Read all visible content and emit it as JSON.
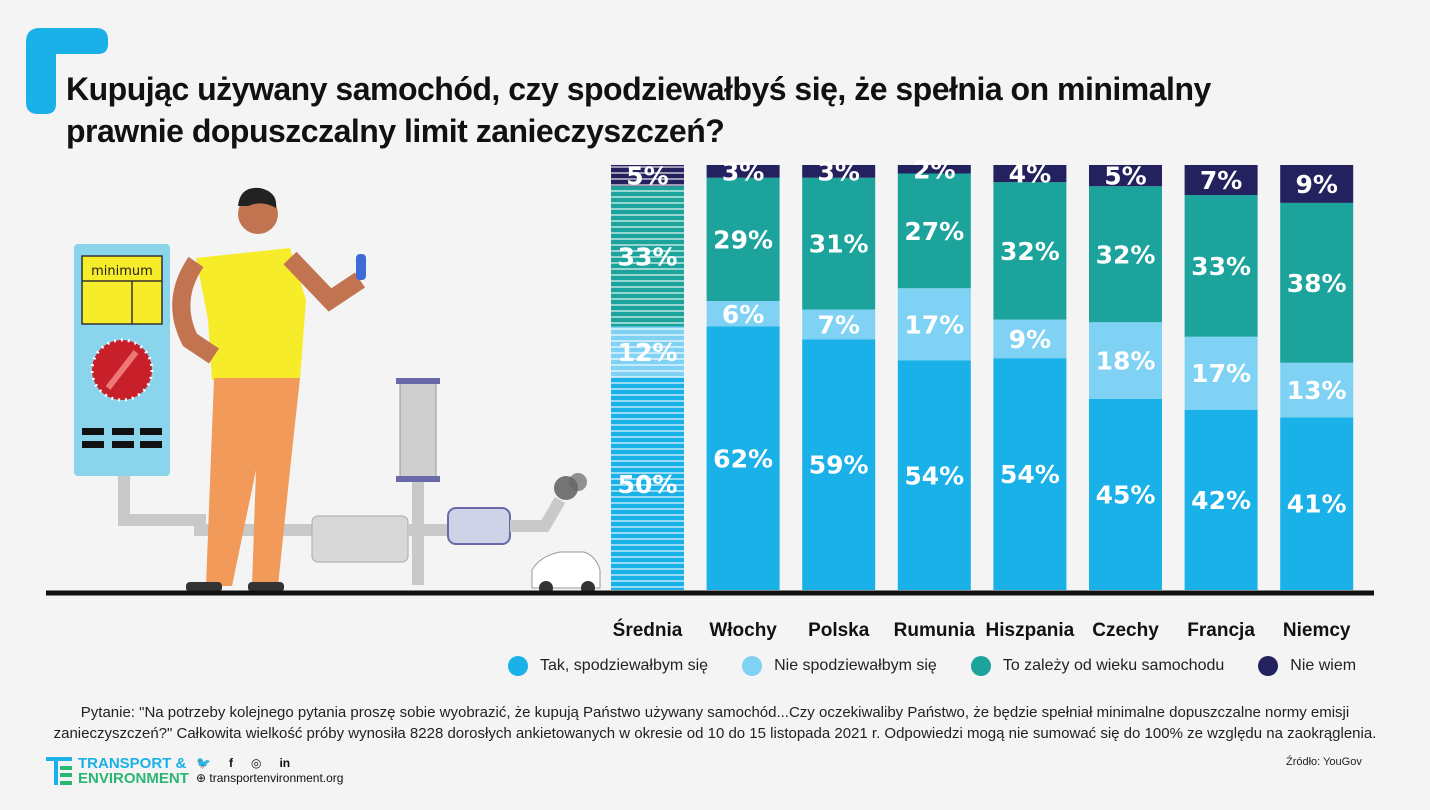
{
  "title": "Kupując używany samochód, czy spodziewałbyś się, że spełnia on minimalny prawnie dopuszczalny limit zanieczyszczeń?",
  "illustration": {
    "panel_label": "minimum"
  },
  "colors": {
    "tak": "#1ab0e8",
    "nie": "#80d2f4",
    "zalezy": "#1ba39c",
    "nie_wiem": "#23215e",
    "background": "#f4f4f4"
  },
  "chart_data": {
    "type": "bar",
    "stacked": true,
    "categories": [
      "Średnia",
      "Włochy",
      "Polska",
      "Rumunia",
      "Hiszpania",
      "Czechy",
      "Francja",
      "Niemcy"
    ],
    "series": [
      {
        "name": "Tak, spodziewałbym się",
        "values": [
          50,
          62,
          59,
          54,
          54,
          45,
          42,
          41
        ]
      },
      {
        "name": "Nie spodziewałbym się",
        "values": [
          12,
          6,
          7,
          17,
          9,
          18,
          17,
          13
        ]
      },
      {
        "name": "To zależy od wieku samochodu",
        "values": [
          33,
          29,
          31,
          27,
          32,
          32,
          33,
          38
        ]
      },
      {
        "name": "Nie wiem",
        "values": [
          5,
          3,
          3,
          2,
          4,
          5,
          7,
          9
        ]
      }
    ],
    "unit": "%",
    "highlight_category": "Średnia",
    "legend_position": "bottom",
    "grid": false
  },
  "legend": [
    "Tak, spodziewałbym się",
    "Nie spodziewałbym się",
    "To zależy od wieku samochodu",
    "Nie wiem"
  ],
  "footer": {
    "note_line1": "Pytanie: \"Na potrzeby kolejnego pytania proszę sobie wyobrazić, że kupują Państwo używany samochód...Czy oczekiwaliby Państwo, że będzie spełniał minimalne dopuszczalne normy emisji",
    "note_line2": "zanieczyszczeń?\" Całkowita wielkość próby wynosiła 8228 dorosłych ankietowanych w okresie od 10 do 15 listopada 2021 r. Odpowiedzi mogą nie sumować się do 100% ze względu na zaokrąglenia.",
    "logo_line1": "TRANSPORT &",
    "logo_line2": "ENVIRONMENT",
    "website": "transportenvironment.org",
    "source": "Źródło: YouGov",
    "social_icons": [
      "twitter-icon",
      "facebook-icon",
      "instagram-icon",
      "linkedin-icon"
    ]
  }
}
